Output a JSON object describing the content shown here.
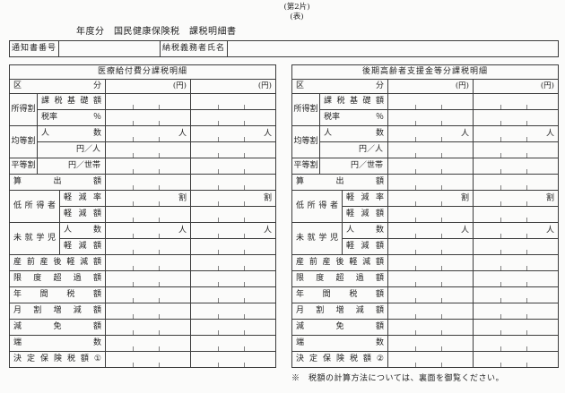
{
  "page": {
    "sheet_tag": "(第2片)",
    "side_tag": "(表)",
    "title": "年度分　国民健康保険税　課税明細書",
    "footer_note": "※　税額の計算方法については、裏面を御覧ください。"
  },
  "notify": {
    "number_label": "通知書番号",
    "number_value": "",
    "name_label": "納税義務者氏名",
    "name_value": ""
  },
  "labels": {
    "kubun": "区 分",
    "unit_yen_header": "(円)",
    "income_group": "所得割",
    "income_base": "課 税 基 礎 額",
    "tax_rate": "税率 ％",
    "per_capita_group": "均等割",
    "person_count": "人 数",
    "yen_per_person": "円／人",
    "household_group": "平等割",
    "yen_per_household": "円／世帯",
    "calculated_amount": "算 出 額",
    "low_income_group": "低 所 得 者",
    "reduction_rate": "軽 減 率",
    "reduction_amount": "軽 減 額",
    "preschool_group": "未 就 学 児",
    "prenatal_reduction": "産 前 産 後 軽 減 額",
    "limit_excess": "限 度 超 過 額",
    "annual_tax": "年 間 税 額",
    "monthly_adjustment": "月 割 増 減 額",
    "exemption": "減 免 額",
    "fraction": "端 数",
    "unit_person": "人",
    "unit_wari": "割"
  },
  "tables": [
    {
      "title": "医療給付費分課税明細",
      "decision_label": "決 定 保 険 税 額 ①"
    },
    {
      "title": "後期高齢者支援金等分課税明細",
      "decision_label": "決 定 保 険 税 額 ②"
    }
  ]
}
